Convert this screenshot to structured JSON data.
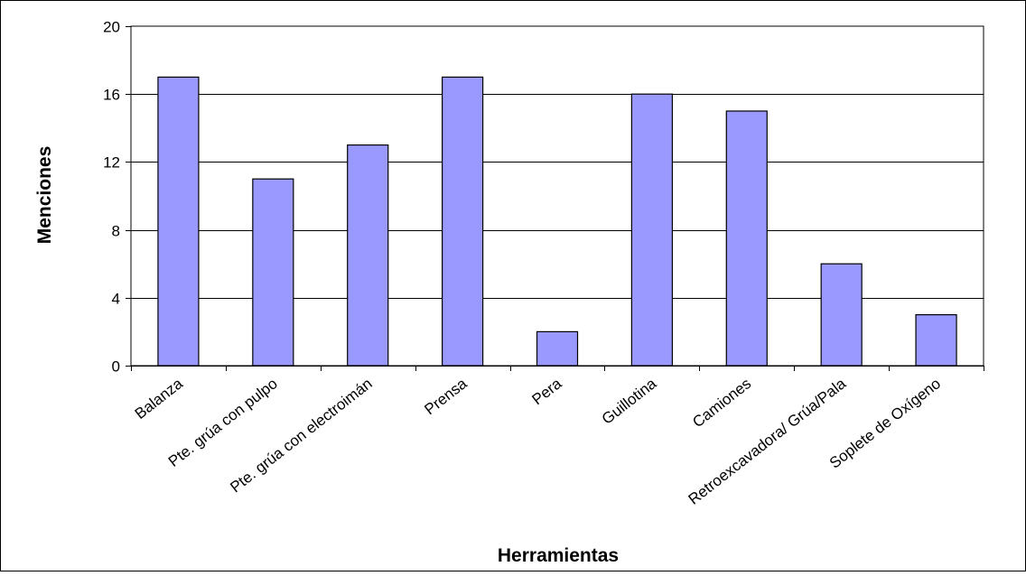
{
  "chart_data": {
    "type": "bar",
    "categories": [
      "Balanza",
      "Pte. grúa con pulpo",
      "Pte. grúa con electroimán",
      "Prensa",
      "Pera",
      "Guillotina",
      "Camiones",
      "Retroexcavadora/ Grúa/Pala",
      "Soplete de Oxígeno"
    ],
    "values": [
      17,
      11,
      13,
      17,
      2,
      16,
      15,
      6,
      3
    ],
    "xlabel": "Herramientas",
    "ylabel": "Menciones",
    "ylim": [
      0,
      20
    ],
    "yticks": [
      0,
      4,
      8,
      12,
      16,
      20
    ],
    "grid": true,
    "legend": "none",
    "colors": {
      "bar_fill": "#9999ff",
      "bar_stroke": "#000000",
      "plot_background": "#ffffff",
      "gridline": "#000000",
      "frame": "#000000"
    }
  }
}
